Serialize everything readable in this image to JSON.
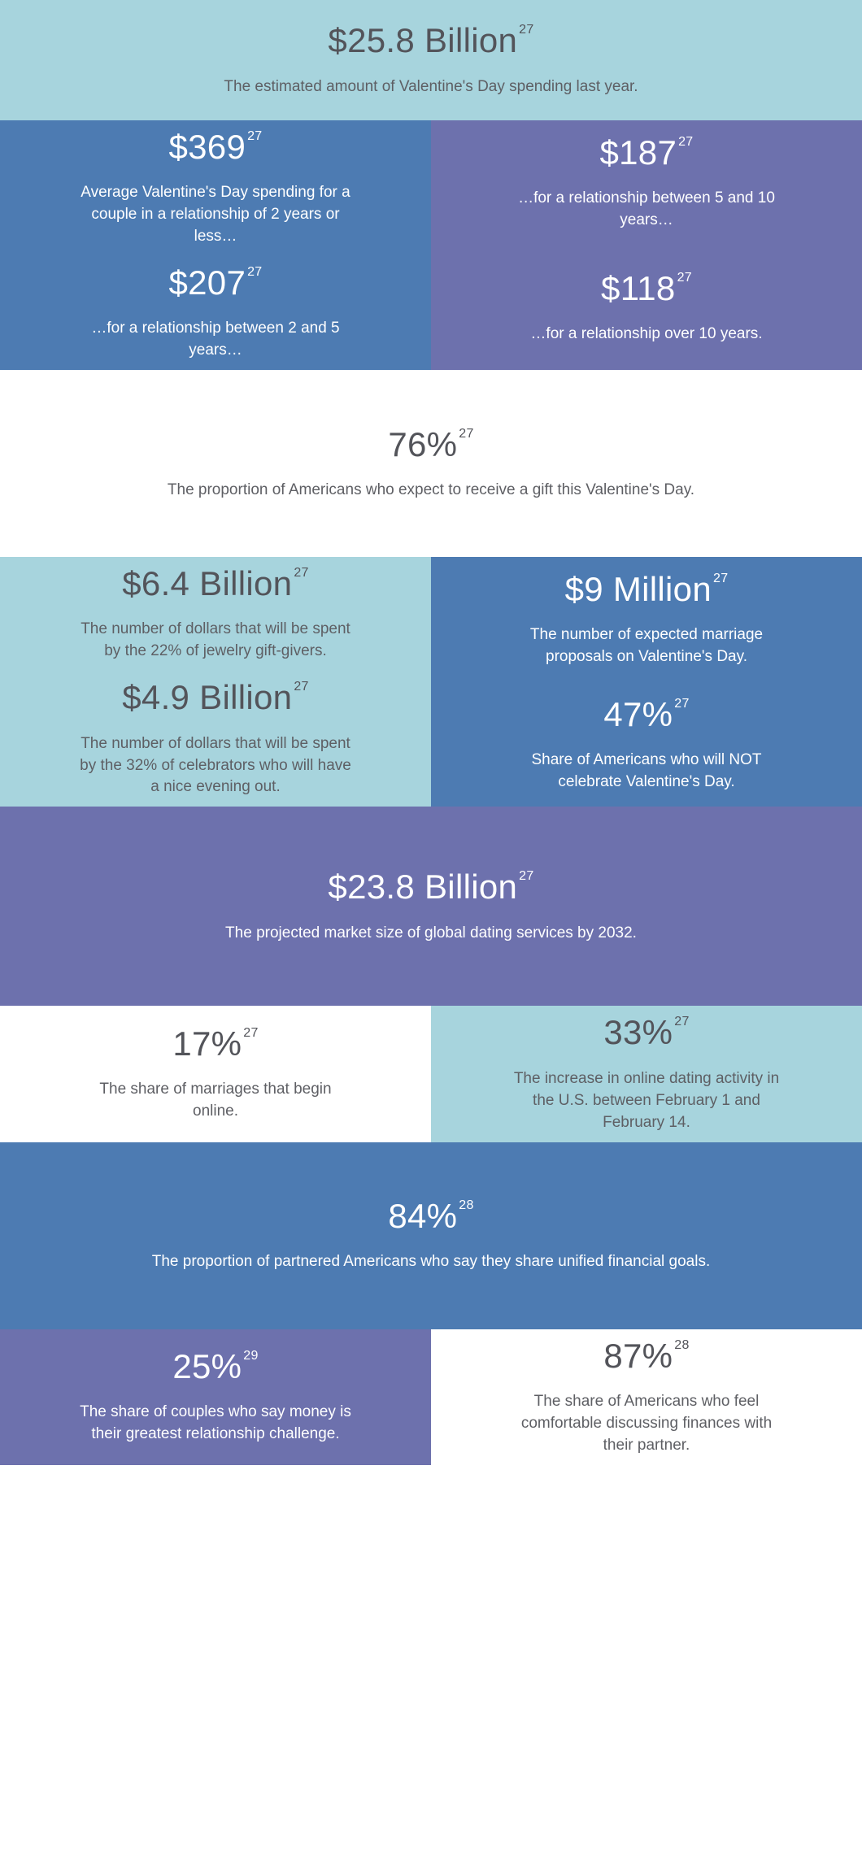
{
  "palette": {
    "light_blue": "#a7d4dd",
    "blue": "#4d7bb2",
    "purple": "#6d71ad",
    "white": "#ffffff",
    "dark_text": "#53545a",
    "dark_body_text": "#5e5f64",
    "light_text": "#ffffff"
  },
  "sections": {
    "hero": {
      "stat": "$25.8 Billion",
      "footnote": "27",
      "desc": "The estimated amount of Valentine's Day spending last year."
    },
    "relationship_spending": {
      "left": [
        {
          "stat": "$369",
          "footnote": "27",
          "desc": "Average Valentine's Day spending for a couple in a relationship of 2 years or less…"
        },
        {
          "stat": "$207",
          "footnote": "27",
          "desc": "…for a relationship between 2 and 5 years…"
        }
      ],
      "right": [
        {
          "stat": "$187",
          "footnote": "27",
          "desc": "…for a relationship between 5 and 10 years…"
        },
        {
          "stat": "$118",
          "footnote": "27",
          "desc": "…for a relationship over 10 years."
        }
      ]
    },
    "gift_expectation": {
      "stat": "76%",
      "footnote": "27",
      "desc": "The proportion of Americans who expect to receive a gift this Valentine's Day."
    },
    "spending_breakdown": {
      "left": [
        {
          "stat": "$6.4 Billion",
          "footnote": "27",
          "desc": "The number of dollars that will be spent by the 22% of jewelry gift-givers."
        },
        {
          "stat": "$4.9 Billion",
          "footnote": "27",
          "desc": "The number of dollars that will be spent by the 32% of celebrators who will have a nice evening out."
        }
      ],
      "right": [
        {
          "stat": "$9 Million",
          "footnote": "27",
          "desc": "The number of expected marriage proposals on Valentine's Day."
        },
        {
          "stat": "47%",
          "footnote": "27",
          "desc": "Share of Americans who will NOT celebrate Valentine's Day."
        }
      ]
    },
    "dating_market": {
      "stat": "$23.8 Billion",
      "footnote": "27",
      "desc": "The projected market size of global dating services by 2032."
    },
    "online_dating": {
      "left": {
        "stat": "17%",
        "footnote": "27",
        "desc": "The share of marriages that begin online."
      },
      "right": {
        "stat": "33%",
        "footnote": "27",
        "desc": "The increase in online dating activity in the U.S. between February 1 and February 14."
      }
    },
    "financial_goals": {
      "stat": "84%",
      "footnote": "28",
      "desc": "The proportion of partnered Americans who say they share unified financial goals."
    },
    "money_and_couples": {
      "left": {
        "stat": "25%",
        "footnote": "29",
        "desc": "The share of couples who say money is their greatest relationship challenge."
      },
      "right": {
        "stat": "87%",
        "footnote": "28",
        "desc": "The share of Americans who feel comfortable discussing finances with their partner."
      }
    }
  }
}
